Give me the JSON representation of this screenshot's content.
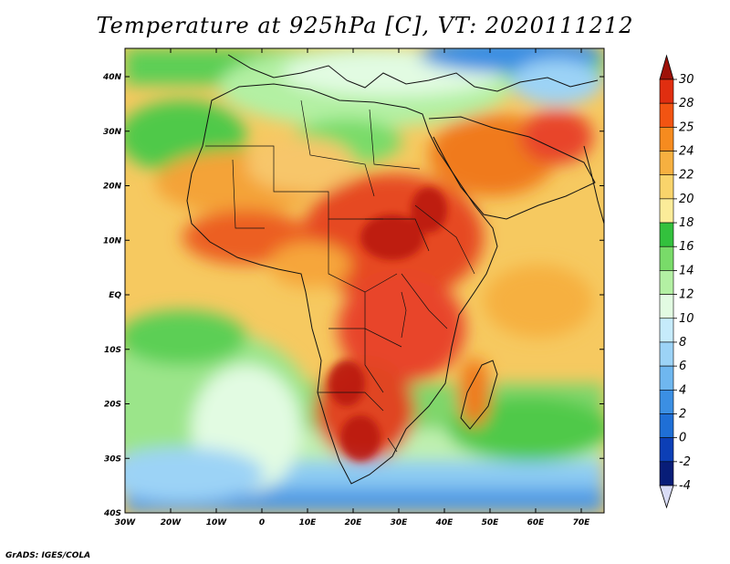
{
  "title": "Temperature at 925hPa [C], VT: 2020111212",
  "credit": "GrADS: IGES/COLA",
  "map": {
    "lat_labels": [
      "40N",
      "30N",
      "20N",
      "10N",
      "EQ",
      "10S",
      "20S",
      "30S",
      "40S"
    ],
    "lon_labels": [
      "30W",
      "20W",
      "10W",
      "0",
      "10E",
      "20E",
      "30E",
      "40E",
      "50E",
      "60E",
      "70E"
    ],
    "ocean_color": "#f5cf73",
    "land_color": "#e8452a"
  },
  "colorbar": {
    "labels": [
      "30",
      "28",
      "25",
      "24",
      "22",
      "20",
      "18",
      "16",
      "14",
      "12",
      "10",
      "8",
      "6",
      "4",
      "2",
      "0",
      "-2",
      "-4"
    ],
    "colors": [
      "#9e1209",
      "#e02e10",
      "#f25412",
      "#f68b1f",
      "#f6b040",
      "#f9d46b",
      "#fbec99",
      "#33c13d",
      "#79db69",
      "#b3f0a3",
      "#e2fbe2",
      "#c6ebfb",
      "#9cd3f6",
      "#6fb7ef",
      "#3b8fe3",
      "#1f6fd6",
      "#0c3fb6",
      "#081d78",
      "#d9dcf6"
    ]
  }
}
